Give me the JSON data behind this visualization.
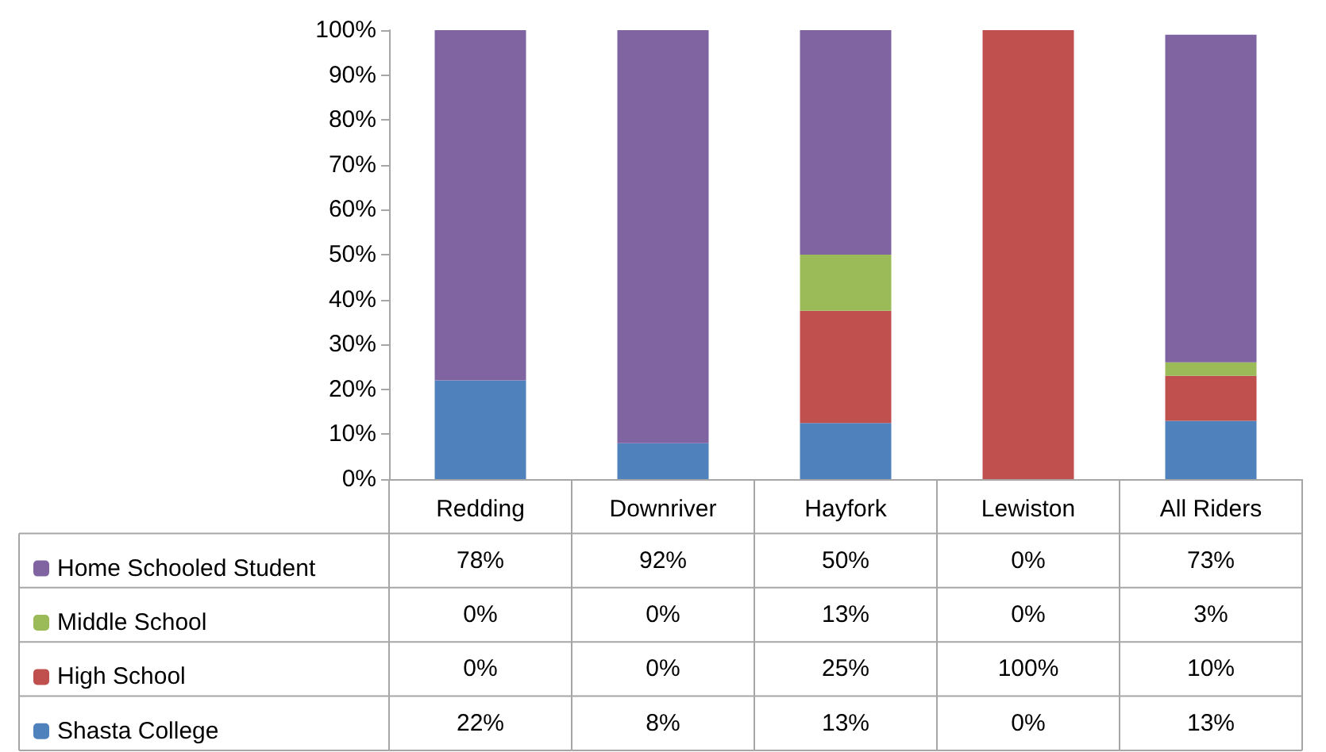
{
  "chart_data": {
    "type": "bar",
    "stacked": true,
    "categories": [
      "Redding",
      "Downriver",
      "Hayfork",
      "Lewiston",
      "All Riders"
    ],
    "series": [
      {
        "name": "Shasta College",
        "color": "#4f81bd",
        "values": [
          22,
          8,
          12.5,
          0,
          13
        ],
        "value_labels": [
          "22%",
          "8%",
          "13%",
          "0%",
          "13%"
        ]
      },
      {
        "name": "High School",
        "color": "#c0504d",
        "values": [
          0,
          0,
          25,
          100,
          10
        ],
        "value_labels": [
          "0%",
          "0%",
          "25%",
          "100%",
          "10%"
        ]
      },
      {
        "name": "Middle School",
        "color": "#9bbb59",
        "values": [
          0,
          0,
          12.5,
          0,
          3
        ],
        "value_labels": [
          "0%",
          "0%",
          "13%",
          "0%",
          "3%"
        ]
      },
      {
        "name": "Home Schooled Student",
        "color": "#8064a2",
        "values": [
          78,
          92,
          50,
          0,
          73
        ],
        "value_labels": [
          "78%",
          "92%",
          "50%",
          "0%",
          "73%"
        ]
      }
    ],
    "ylim": [
      0,
      100
    ],
    "yticks": [
      {
        "value": 0,
        "label": "0%"
      },
      {
        "value": 10,
        "label": "10%"
      },
      {
        "value": 20,
        "label": "20%"
      },
      {
        "value": 30,
        "label": "30%"
      },
      {
        "value": 40,
        "label": "40%"
      },
      {
        "value": 50,
        "label": "50%"
      },
      {
        "value": 60,
        "label": "60%"
      },
      {
        "value": 70,
        "label": "70%"
      },
      {
        "value": 80,
        "label": "80%"
      },
      {
        "value": 90,
        "label": "90%"
      },
      {
        "value": 100,
        "label": "100%"
      }
    ],
    "grid": false,
    "legend": "bottom left"
  }
}
